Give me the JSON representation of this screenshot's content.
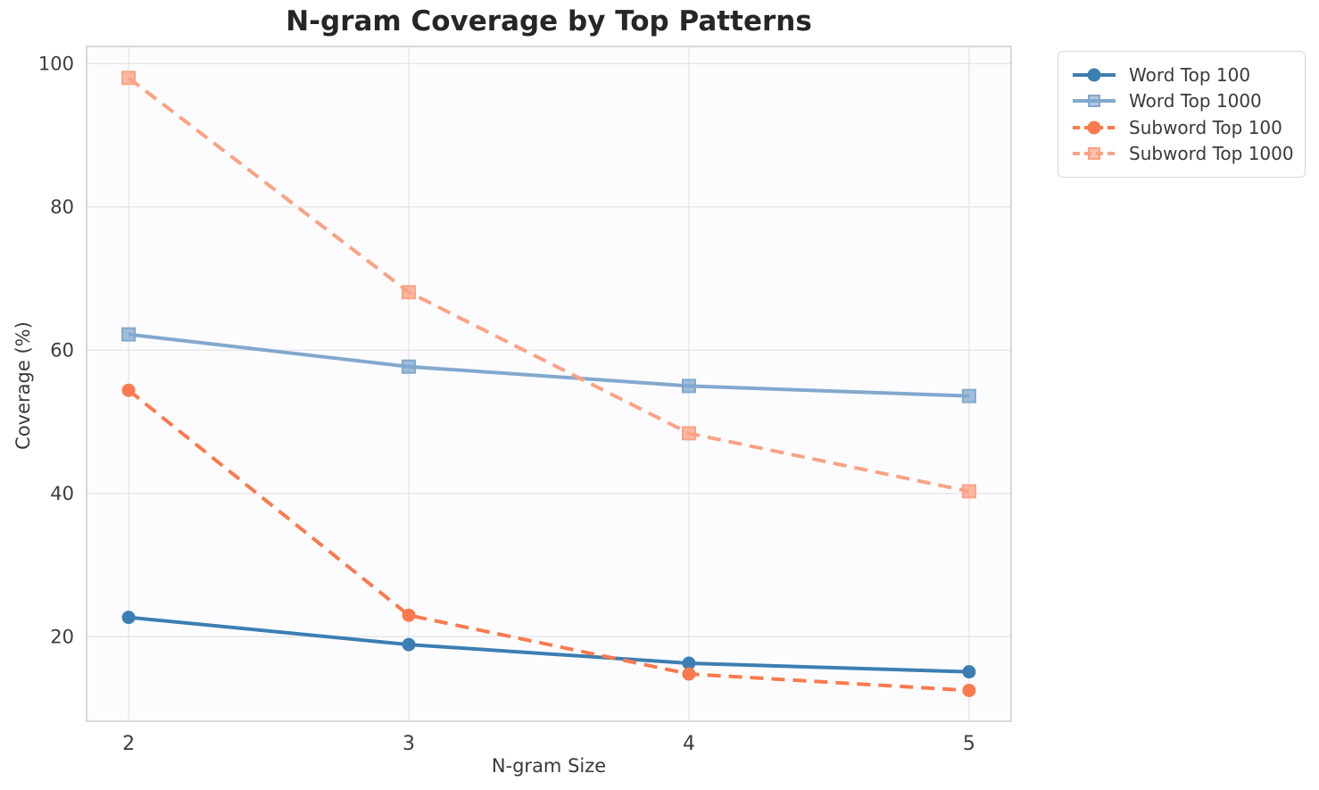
{
  "chart_data": {
    "type": "line",
    "title": "N-gram Coverage by Top Patterns",
    "xlabel": "N-gram Size",
    "ylabel": "Coverage (%)",
    "x": [
      2,
      3,
      4,
      5
    ],
    "xticks": [
      "2",
      "3",
      "4",
      "5"
    ],
    "yticks": [
      "20",
      "40",
      "60",
      "80",
      "100"
    ],
    "ytick_values": [
      20,
      40,
      60,
      80,
      100
    ],
    "xlim": [
      1.85,
      5.15
    ],
    "ylim": [
      8.2,
      102.4
    ],
    "grid": true,
    "legend_position": "outside-top-right",
    "series": [
      {
        "name": "Word Top 100",
        "values": [
          22.7,
          18.9,
          16.3,
          15.1
        ],
        "color": "#3C7EB1",
        "line_style": "solid",
        "marker": "circle"
      },
      {
        "name": "Word Top 1000",
        "values": [
          62.2,
          57.7,
          55.0,
          53.6
        ],
        "color": "#82A8CD",
        "line_style": "solid",
        "marker": "square"
      },
      {
        "name": "Subword Top 100",
        "values": [
          54.4,
          23.0,
          14.8,
          12.5
        ],
        "color": "#FA7A4D",
        "line_style": "dashed",
        "marker": "circle"
      },
      {
        "name": "Subword Top 1000",
        "values": [
          98.0,
          68.1,
          48.4,
          40.3
        ],
        "color": "#FBA283",
        "line_style": "dashed",
        "marker": "square"
      }
    ],
    "colors": {
      "title": "#262626",
      "tick_label": "#3d3d3d",
      "grid": "#e7e7ea",
      "spine": "#d4d4da",
      "plot_bg": "#fcfcfe",
      "figure_bg": "#ffffff"
    }
  }
}
